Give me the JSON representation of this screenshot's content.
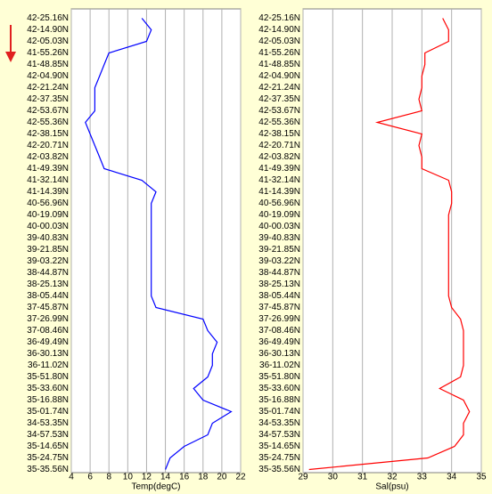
{
  "chart_data": [
    {
      "type": "line",
      "xlabel": "Temp(degC)",
      "categories": [
        "42-25.16N",
        "42-14.90N",
        "42-05.03N",
        "41-55.26N",
        "41-48.85N",
        "42-04.90N",
        "42-21.24N",
        "42-37.35N",
        "42-53.67N",
        "42-55.36N",
        "42-38.15N",
        "42-20.71N",
        "42-03.82N",
        "41-49.39N",
        "41-32.14N",
        "41-14.39N",
        "40-56.96N",
        "40-19.09N",
        "40-00.03N",
        "39-40.83N",
        "39-21.85N",
        "39-03.22N",
        "38-44.87N",
        "38-25.13N",
        "38-05.44N",
        "37-45.87N",
        "37-26.99N",
        "37-08.46N",
        "36-49.49N",
        "36-30.13N",
        "36-11.02N",
        "35-51.80N",
        "35-33.60N",
        "35-16.88N",
        "35-01.74N",
        "34-53.35N",
        "34-57.53N",
        "35-14.65N",
        "35-24.75N",
        "35-35.56N"
      ],
      "series": [
        {
          "color": "#0000ff",
          "values": [
            11.5,
            12.5,
            12,
            8,
            7.5,
            7,
            6.5,
            6.5,
            6.5,
            5.5,
            6,
            6.5,
            7,
            7.5,
            11.5,
            13,
            12.5,
            12.5,
            12.5,
            12.5,
            12.5,
            12.5,
            12.5,
            12.5,
            12.5,
            13,
            18,
            18.5,
            19.5,
            19,
            19,
            18.5,
            17,
            18,
            21,
            19,
            18.5,
            16,
            14.5,
            14
          ]
        }
      ],
      "xlim": [
        4,
        22
      ],
      "xticks": [
        4,
        6,
        8,
        10,
        12,
        14,
        16,
        18,
        20,
        22
      ],
      "grid": true
    },
    {
      "type": "line",
      "xlabel": "Sal(psu)",
      "categories": [
        "42-25.16N",
        "42-14.90N",
        "42-05.03N",
        "41-55.26N",
        "41-48.85N",
        "42-04.90N",
        "42-21.24N",
        "42-37.35N",
        "42-53.67N",
        "42-55.36N",
        "42-38.15N",
        "42-20.71N",
        "42-03.82N",
        "41-49.39N",
        "41-32.14N",
        "41-14.39N",
        "40-56.96N",
        "40-19.09N",
        "40-00.03N",
        "39-40.83N",
        "39-21.85N",
        "39-03.22N",
        "38-44.87N",
        "38-25.13N",
        "38-05.44N",
        "37-45.87N",
        "37-26.99N",
        "37-08.46N",
        "36-49.49N",
        "36-30.13N",
        "36-11.02N",
        "35-51.80N",
        "35-33.60N",
        "35-16.88N",
        "35-01.74N",
        "34-53.35N",
        "34-57.53N",
        "35-14.65N",
        "35-24.75N",
        "35-35.56N"
      ],
      "series": [
        {
          "color": "#ff0000",
          "values": [
            33.7,
            33.9,
            33.9,
            33.1,
            33.1,
            33,
            33,
            32.9,
            33,
            31.5,
            33,
            32.9,
            33,
            33,
            33.9,
            34,
            34,
            33.9,
            33.9,
            33.9,
            33.9,
            33.9,
            33.9,
            33.9,
            33.9,
            34,
            34.3,
            34.4,
            34.4,
            34.4,
            34.4,
            34.3,
            33.6,
            34.4,
            34.6,
            34.4,
            34.4,
            34.1,
            33.2,
            29.2
          ]
        }
      ],
      "xlim": [
        29,
        35
      ],
      "xticks": [
        29,
        30,
        31,
        32,
        33,
        34,
        35
      ],
      "grid": true
    }
  ]
}
